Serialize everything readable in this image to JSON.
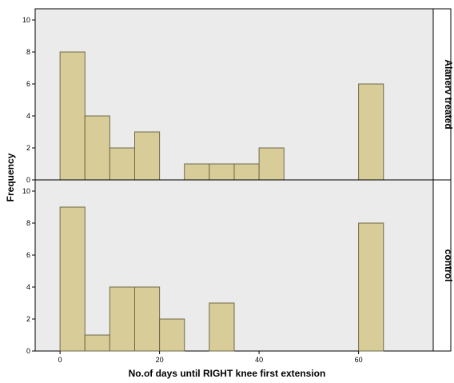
{
  "chart_data": {
    "type": "bar",
    "subtype": "histogram",
    "xlabel": "No.of days until RIGHT knee first extension",
    "ylabel": "Frequency",
    "xlim": [
      -5,
      75
    ],
    "ylim": [
      0,
      10
    ],
    "x_ticks": [
      0,
      20,
      40,
      60
    ],
    "y_ticks": [
      0,
      2,
      4,
      6,
      8,
      10
    ],
    "bin_width": 5,
    "grid": false,
    "colors": {
      "bar_fill": "#d8cd98",
      "bar_stroke": "#6e6848",
      "panel_bg": "#ebebeb"
    },
    "panels": [
      {
        "label": "Alanerv treated",
        "bins": [
          {
            "start": 0,
            "end": 5,
            "count": 8
          },
          {
            "start": 5,
            "end": 10,
            "count": 4
          },
          {
            "start": 10,
            "end": 15,
            "count": 2
          },
          {
            "start": 15,
            "end": 20,
            "count": 3
          },
          {
            "start": 25,
            "end": 30,
            "count": 1
          },
          {
            "start": 30,
            "end": 35,
            "count": 1
          },
          {
            "start": 35,
            "end": 40,
            "count": 1
          },
          {
            "start": 40,
            "end": 45,
            "count": 2
          },
          {
            "start": 60,
            "end": 65,
            "count": 6
          }
        ]
      },
      {
        "label": "control",
        "bins": [
          {
            "start": 0,
            "end": 5,
            "count": 9
          },
          {
            "start": 5,
            "end": 10,
            "count": 1
          },
          {
            "start": 10,
            "end": 15,
            "count": 4
          },
          {
            "start": 15,
            "end": 20,
            "count": 4
          },
          {
            "start": 20,
            "end": 25,
            "count": 2
          },
          {
            "start": 30,
            "end": 35,
            "count": 3
          },
          {
            "start": 60,
            "end": 65,
            "count": 8
          }
        ]
      }
    ]
  }
}
